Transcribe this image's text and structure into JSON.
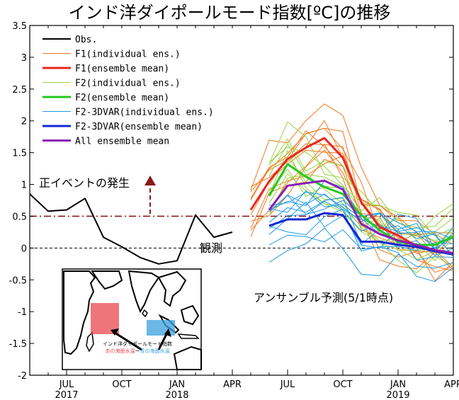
{
  "chart_data": {
    "type": "line",
    "title": "インド洋ダイポールモード指数[ºC]の推移",
    "ylim": [
      -2,
      3.5
    ],
    "yticks": [
      "3.5",
      "3",
      "2.5",
      "2",
      "1.5",
      "1",
      "0.5",
      "0",
      "-0.5",
      "-1",
      "-1.5",
      "-2"
    ],
    "xlim": [
      0,
      23
    ],
    "xticks": [
      {
        "x": 2,
        "label": "JUL",
        "year": "2017"
      },
      {
        "x": 5,
        "label": "OCT",
        "year": ""
      },
      {
        "x": 8,
        "label": "JAN",
        "year": "2018"
      },
      {
        "x": 11,
        "label": "APR",
        "year": ""
      },
      {
        "x": 14,
        "label": "JUL",
        "year": ""
      },
      {
        "x": 17,
        "label": "OCT",
        "year": ""
      },
      {
        "x": 20,
        "label": "JAN",
        "year": "2019"
      },
      {
        "x": 23,
        "label": "APR",
        "year": ""
      }
    ],
    "threshold": 0.5,
    "legend": [
      {
        "label": "Obs.",
        "color": "#000000",
        "width": 2
      },
      {
        "label": "F1(individual ens.)",
        "color": "#f07820",
        "width": 1
      },
      {
        "label": "F1(ensemble mean)",
        "color": "#e8281e",
        "width": 3
      },
      {
        "label": "F2(individual ens.)",
        "color": "#96d23c",
        "width": 1
      },
      {
        "label": "F2(ensemble mean)",
        "color": "#22c81e",
        "width": 3
      },
      {
        "label": "F2-3DVAR(individual ens.)",
        "color": "#1e9ae6",
        "width": 1
      },
      {
        "label": "F2-3DVAR(ensemble mean)",
        "color": "#1428d2",
        "width": 3
      },
      {
        "label": "All ensemble mean",
        "color": "#8c1eb4",
        "width": 3
      }
    ],
    "series": [
      {
        "name": "Obs.",
        "color": "#000000",
        "width": 2,
        "x": [
          0,
          1,
          2,
          3,
          4,
          5,
          6,
          7,
          8,
          9,
          10,
          11
        ],
        "y": [
          0.85,
          0.58,
          0.6,
          0.78,
          0.17,
          0.02,
          -0.15,
          -0.25,
          -0.2,
          0.52,
          0.17,
          0.25
        ]
      },
      {
        "name": "F1(ensemble mean)",
        "color": "#e8281e",
        "width": 3,
        "x": [
          12,
          13,
          14,
          15,
          16,
          17,
          18,
          19,
          20,
          21,
          22,
          23
        ],
        "y": [
          0.6,
          1.05,
          1.4,
          1.58,
          1.73,
          1.42,
          0.72,
          0.33,
          0.2,
          0.03,
          -0.05,
          -0.1
        ]
      },
      {
        "name": "F2(ensemble mean)",
        "color": "#22c81e",
        "width": 3,
        "x": [
          13,
          14,
          15,
          16,
          17,
          18,
          19,
          20,
          21,
          22,
          23
        ],
        "y": [
          0.82,
          1.32,
          1.12,
          0.96,
          0.85,
          0.52,
          0.28,
          0.1,
          0.05,
          0.05,
          0.18
        ]
      },
      {
        "name": "F2-3DVAR(ensemble mean)",
        "color": "#1428d2",
        "width": 3,
        "x": [
          13,
          14,
          15,
          16,
          17,
          18,
          19,
          20,
          21,
          22,
          23
        ],
        "y": [
          0.35,
          0.45,
          0.45,
          0.55,
          0.52,
          0.1,
          0.1,
          0.05,
          0.02,
          -0.05,
          -0.1
        ]
      },
      {
        "name": "All ensemble mean",
        "color": "#8c1eb4",
        "width": 3,
        "x": [
          13,
          14,
          15,
          16,
          17,
          18,
          19,
          20,
          21,
          22,
          23
        ],
        "y": [
          0.6,
          0.98,
          1.02,
          1.06,
          0.92,
          0.38,
          0.22,
          0.12,
          0.05,
          -0.03,
          -0.08
        ]
      }
    ],
    "annotations": {
      "event": "正イベントの発生",
      "obs": "観測",
      "forecast": "アンサンブル予測(5/1時点)"
    },
    "inset_map": {
      "caption": "インド洋ダイポールモード指数",
      "west_label": "赤の海面水温",
      "dash": "ー",
      "east_label": "青の海面水温",
      "west_color": "#e8484e",
      "east_color": "#3aa0dc",
      "west_box": {
        "lon": [
          50,
          70
        ],
        "lat": [
          -10,
          10
        ]
      },
      "east_box": {
        "lon": [
          90,
          110
        ],
        "lat": [
          -10,
          0
        ]
      }
    }
  }
}
